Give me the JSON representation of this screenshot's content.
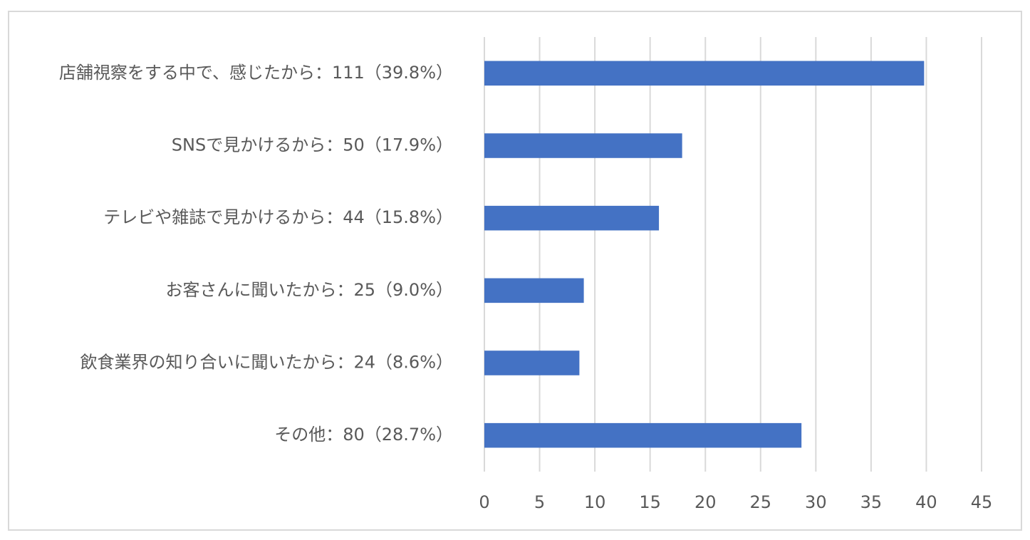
{
  "chart_data": {
    "type": "bar",
    "orientation": "horizontal",
    "categories": [
      "店舗視察をする中で、感じたから：111（39.8%）",
      "SNSで見かけるから：50（17.9%）",
      "テレビや雑誌で見かけるから：44（15.8%）",
      "お客さんに聞いたから：25（9.0%）",
      "飲食業界の知り合いに聞いたから：24（8.6%）",
      "その他：80（28.7%）"
    ],
    "values": [
      39.8,
      17.9,
      15.8,
      9.0,
      8.6,
      28.7
    ],
    "color": "#4472c4",
    "xlim": [
      0,
      45
    ],
    "xticks": [
      0,
      5,
      10,
      15,
      20,
      25,
      30,
      35,
      40,
      45
    ],
    "grid": true
  }
}
